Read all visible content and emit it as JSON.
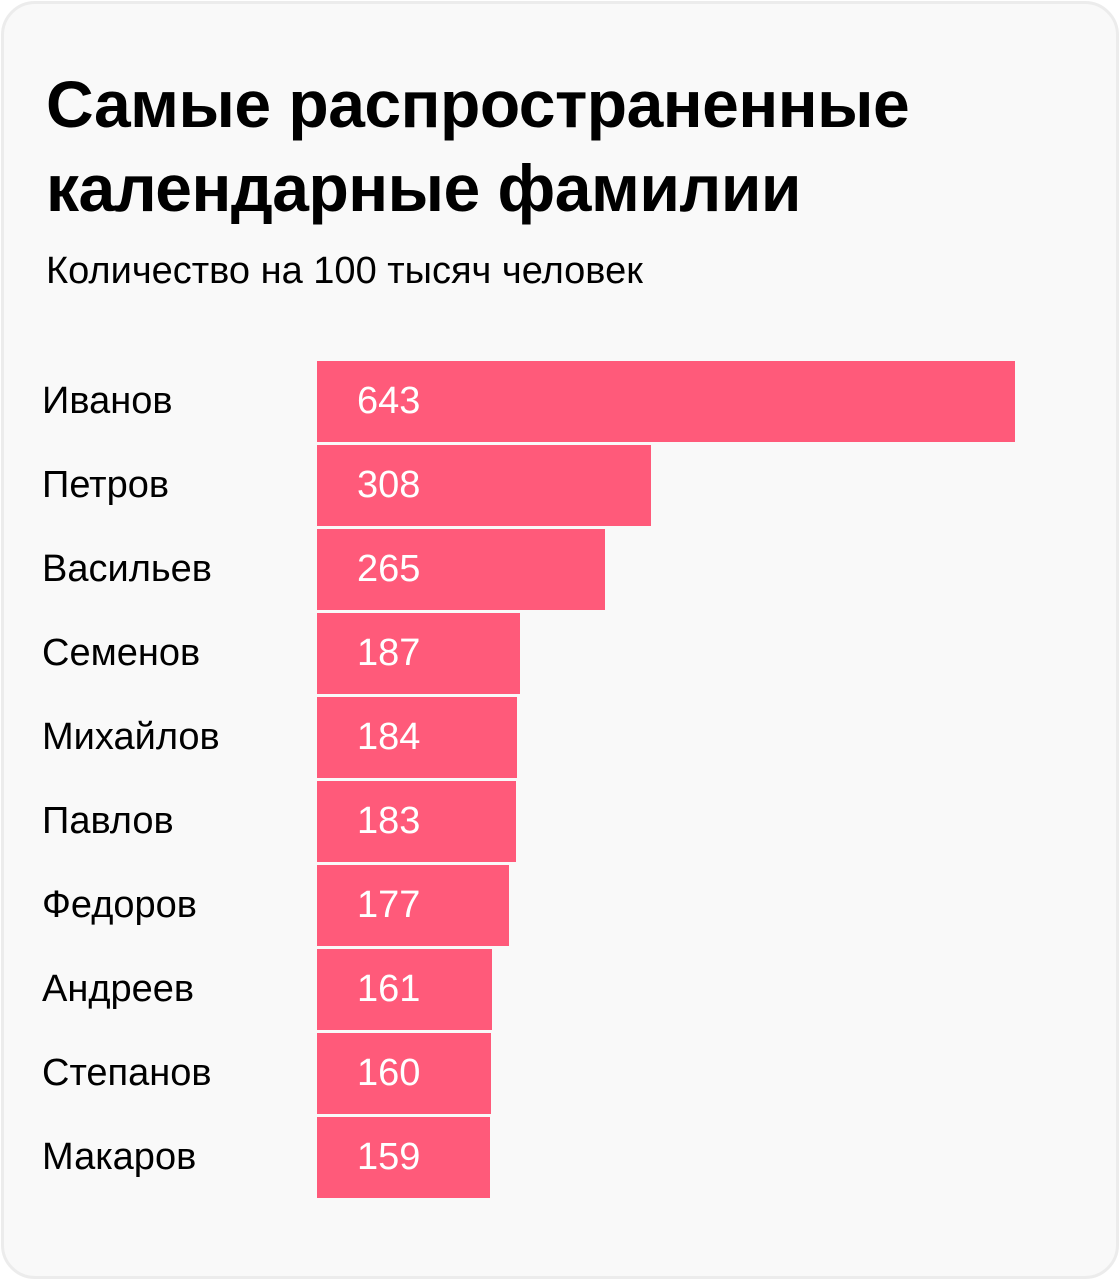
{
  "chart_data": {
    "type": "bar",
    "orientation": "horizontal",
    "title": "Самые распространенные календарные фамилии",
    "subtitle": "Количество на 100 тысяч человек",
    "categories": [
      "Иванов",
      "Петров",
      "Васильев",
      "Семенов",
      "Михайлов",
      "Павлов",
      "Федоров",
      "Андреев",
      "Степанов",
      "Макаров"
    ],
    "values": [
      643,
      308,
      265,
      187,
      184,
      183,
      177,
      161,
      160,
      159
    ],
    "value_labels": [
      "643",
      "308",
      "265",
      "187",
      "184",
      "183",
      "177",
      "161",
      "160",
      "159"
    ],
    "xlim": [
      0,
      643
    ],
    "grid": false,
    "bar_color": "#ff5a7a",
    "background_color": "#f9f9f9"
  }
}
